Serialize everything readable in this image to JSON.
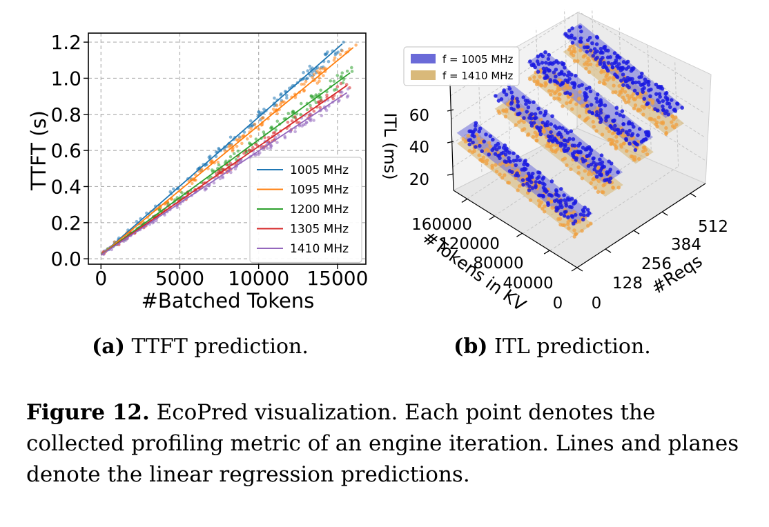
{
  "figure": {
    "caption_label": "Figure 12.",
    "caption_text": " EcoPred visualization. Each point denotes the collected profiling metric of an engine iteration. Lines and planes denote the linear regression predictions."
  },
  "subfigures": [
    {
      "label": "(a)",
      "text": " TTFT prediction."
    },
    {
      "label": "(b)",
      "text": " ITL prediction."
    }
  ],
  "chart_data": [
    {
      "type": "line",
      "title": "",
      "xlabel": "#Batched Tokens",
      "ylabel": "TTFT (s)",
      "xlim": [
        -800,
        16800
      ],
      "ylim": [
        -0.03,
        1.25
      ],
      "xticks": [
        0,
        5000,
        10000,
        15000
      ],
      "xtick_labels": [
        "0",
        "5000",
        "10000",
        "15000"
      ],
      "yticks": [
        0.0,
        0.2,
        0.4,
        0.6,
        0.8,
        1.0,
        1.2
      ],
      "ytick_labels": [
        "0.0",
        "0.2",
        "0.4",
        "0.6",
        "0.8",
        "1.0",
        "1.2"
      ],
      "grid": true,
      "legend_position": "lower-right",
      "scatter_points_per_series": 120,
      "series": [
        {
          "name": "1005 MHz",
          "color": "#1f77b4",
          "x": [
            0,
            15300
          ],
          "y": [
            0.02,
            1.19
          ]
        },
        {
          "name": "1095 MHz",
          "color": "#ff7f0e",
          "x": [
            0,
            16000
          ],
          "y": [
            0.02,
            1.17
          ]
        },
        {
          "name": "1200 MHz",
          "color": "#2ca02c",
          "x": [
            0,
            15800
          ],
          "y": [
            0.02,
            1.03
          ]
        },
        {
          "name": "1305 MHz",
          "color": "#d62728",
          "x": [
            0,
            15600
          ],
          "y": [
            0.02,
            0.96
          ]
        },
        {
          "name": "1410 MHz",
          "color": "#9467bd",
          "x": [
            0,
            15600
          ],
          "y": [
            0.02,
            0.92
          ]
        }
      ]
    },
    {
      "type": "scatter",
      "title": "",
      "xlabel": "#Reqs",
      "ylabel": "ITL (ms)",
      "zlabel": "#Tokens in KV",
      "reqs_ticks": [
        "0",
        "128",
        "256",
        "384",
        "512"
      ],
      "tokens_ticks": [
        "0",
        "40000",
        "80000",
        "120000",
        "160000"
      ],
      "itl_ticks": [
        "20",
        "40",
        "60"
      ],
      "legend_position": "upper-left",
      "series": [
        {
          "name": "f = 1005 MHz",
          "color": "#6a6ad8"
        },
        {
          "name": "f = 1410 MHz",
          "color": "#d9b97a"
        }
      ]
    }
  ]
}
